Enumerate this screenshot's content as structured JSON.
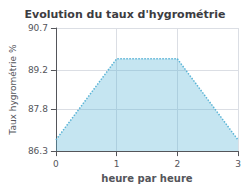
{
  "chart_data": {
    "type": "area",
    "title": "Evolution du taux d'hygrométrie",
    "xlabel": "heure par heure",
    "ylabel": "Taux hygrométrie %",
    "x": [
      0,
      1,
      2,
      3
    ],
    "values": [
      86.7,
      89.6,
      89.6,
      86.7
    ],
    "color": "#5ab4d6",
    "line_style": "dotted",
    "xlim": [
      0,
      3
    ],
    "xticks": [
      0,
      1,
      2,
      3
    ],
    "ylim": [
      86.3,
      90.7
    ],
    "yticks": [
      86.3,
      87.8,
      89.2,
      90.7
    ],
    "grid": true
  }
}
